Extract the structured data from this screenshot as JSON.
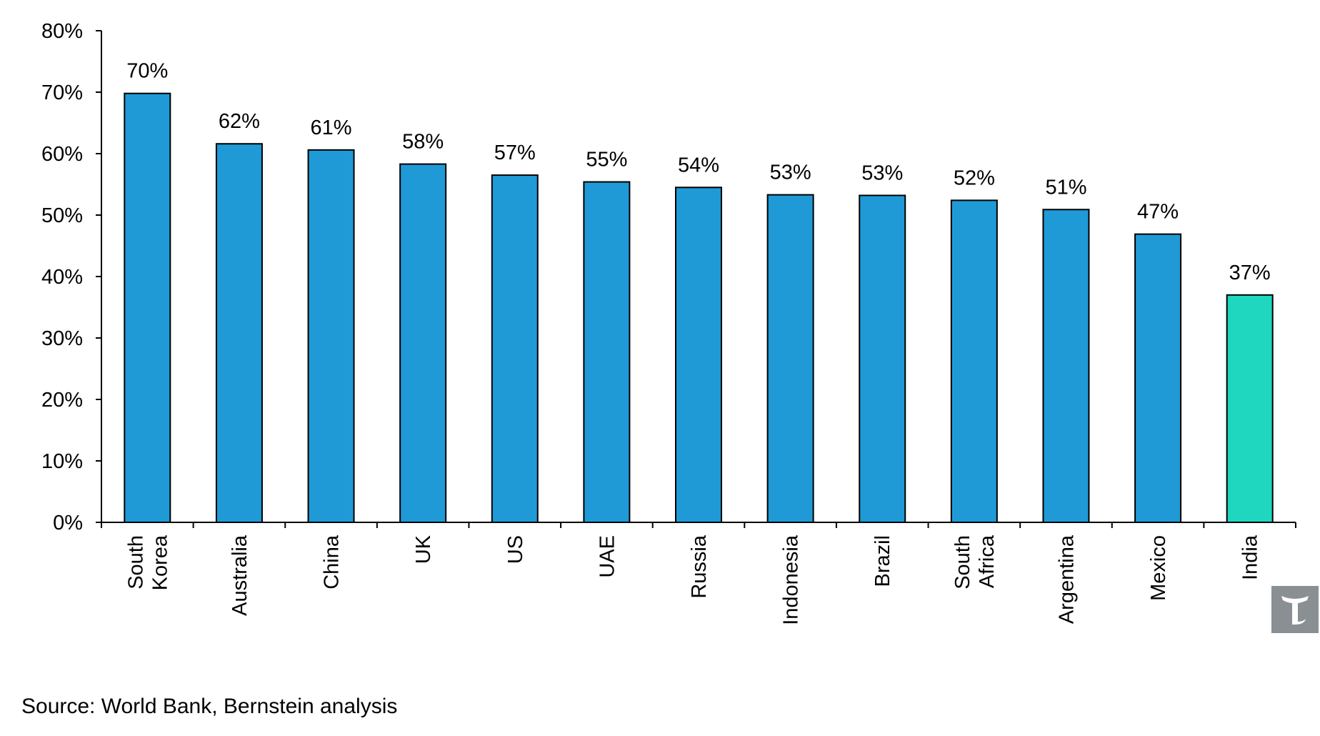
{
  "chart_data": {
    "type": "bar",
    "categories": [
      [
        "South",
        "Korea"
      ],
      [
        "Australia"
      ],
      [
        "China"
      ],
      [
        "UK"
      ],
      [
        "US"
      ],
      [
        "UAE"
      ],
      [
        "Russia"
      ],
      [
        "Indonesia"
      ],
      [
        "Brazil"
      ],
      [
        "South",
        "Africa"
      ],
      [
        "Argentina"
      ],
      [
        "Mexico"
      ],
      [
        "India"
      ]
    ],
    "values": [
      70,
      62,
      61,
      58,
      57,
      55,
      54,
      53,
      53,
      52,
      51,
      47,
      37
    ],
    "bar_heights": [
      69.8,
      61.6,
      60.6,
      58.3,
      56.5,
      55.4,
      54.5,
      53.3,
      53.2,
      52.4,
      50.9,
      46.9,
      37.0
    ],
    "data_labels": [
      "70%",
      "62%",
      "61%",
      "58%",
      "57%",
      "55%",
      "54%",
      "53%",
      "53%",
      "52%",
      "51%",
      "47%",
      "37%"
    ],
    "y_ticks": [
      "0%",
      "10%",
      "20%",
      "30%",
      "40%",
      "50%",
      "60%",
      "70%",
      "80%"
    ],
    "ylim": [
      0,
      80
    ],
    "grid": false,
    "colors": {
      "default": "#1f9ad6",
      "highlight": "#1fd6bf",
      "outline": "#000000"
    },
    "highlight_index": 12
  },
  "source": "Source: World Bank, Bernstein analysis",
  "logo": {
    "icon": "bernstein-logo-icon"
  }
}
